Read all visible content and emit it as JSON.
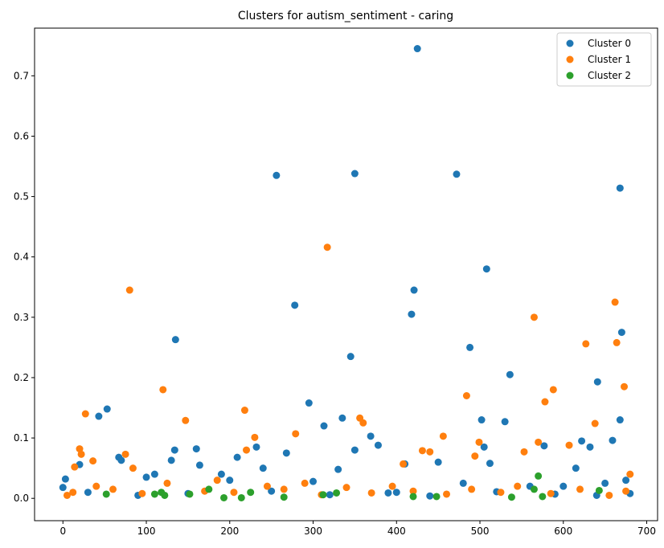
{
  "chart_data": {
    "type": "scatter",
    "title": "Clusters for autism_sentiment - caring",
    "xlim": [
      -34,
      713
    ],
    "ylim": [
      -0.037,
      0.779
    ],
    "xticks": [
      0,
      100,
      200,
      300,
      400,
      500,
      600,
      700
    ],
    "yticks": [
      {
        "value": 0,
        "label": "0.0"
      },
      0.1,
      0.2,
      0.3,
      0.4,
      0.5,
      0.6,
      0.7
    ],
    "legend": "upper right",
    "series": [
      {
        "name": "Cluster 0",
        "color": "#1f77b4",
        "x": [
          425,
          256,
          350,
          472,
          668,
          508,
          421,
          278,
          418,
          135,
          488,
          345,
          670,
          536,
          641,
          295,
          53,
          43,
          335,
          313,
          502,
          530,
          668,
          369,
          659,
          622,
          577,
          632,
          160,
          134,
          350,
          378,
          67,
          70,
          130,
          209,
          268,
          615,
          20,
          164,
          232,
          240,
          3,
          450,
          0,
          200,
          300,
          400,
          480,
          560,
          600,
          650,
          675,
          100,
          110,
          190,
          330,
          410,
          505,
          512,
          30,
          90,
          150,
          250,
          320,
          390,
          440,
          520,
          590,
          640,
          680
        ],
        "y": [
          0.745,
          0.535,
          0.538,
          0.537,
          0.514,
          0.38,
          0.345,
          0.32,
          0.305,
          0.263,
          0.25,
          0.235,
          0.275,
          0.205,
          0.193,
          0.158,
          0.148,
          0.136,
          0.133,
          0.12,
          0.13,
          0.127,
          0.13,
          0.103,
          0.096,
          0.095,
          0.087,
          0.085,
          0.082,
          0.08,
          0.08,
          0.088,
          0.068,
          0.063,
          0.063,
          0.068,
          0.075,
          0.05,
          0.056,
          0.055,
          0.085,
          0.05,
          0.032,
          0.06,
          0.018,
          0.03,
          0.028,
          0.01,
          0.025,
          0.02,
          0.02,
          0.025,
          0.03,
          0.035,
          0.04,
          0.04,
          0.048,
          0.057,
          0.085,
          0.058,
          0.01,
          0.005,
          0.008,
          0.012,
          0.006,
          0.009,
          0.004,
          0.011,
          0.007,
          0.005,
          0.008
        ]
      },
      {
        "name": "Cluster 1",
        "color": "#ff7f0e",
        "x": [
          80,
          317,
          565,
          662,
          664,
          627,
          673,
          120,
          588,
          484,
          578,
          218,
          27,
          147,
          356,
          360,
          638,
          230,
          279,
          456,
          499,
          570,
          607,
          20,
          75,
          22,
          14,
          36,
          84,
          220,
          431,
          440,
          553,
          408,
          494,
          680,
          5,
          12,
          40,
          60,
          95,
          125,
          170,
          185,
          205,
          245,
          265,
          290,
          310,
          340,
          370,
          395,
          420,
          460,
          490,
          525,
          545,
          585,
          620,
          655,
          675
        ],
        "y": [
          0.345,
          0.416,
          0.3,
          0.325,
          0.258,
          0.256,
          0.185,
          0.18,
          0.18,
          0.17,
          0.16,
          0.146,
          0.14,
          0.129,
          0.133,
          0.125,
          0.124,
          0.101,
          0.107,
          0.103,
          0.093,
          0.093,
          0.088,
          0.082,
          0.073,
          0.073,
          0.052,
          0.062,
          0.05,
          0.08,
          0.079,
          0.077,
          0.077,
          0.057,
          0.07,
          0.04,
          0.005,
          0.01,
          0.02,
          0.015,
          0.008,
          0.025,
          0.012,
          0.03,
          0.01,
          0.02,
          0.015,
          0.025,
          0.006,
          0.018,
          0.009,
          0.02,
          0.012,
          0.007,
          0.015,
          0.01,
          0.02,
          0.008,
          0.015,
          0.005,
          0.012
        ]
      },
      {
        "name": "Cluster 2",
        "color": "#2ca02c",
        "x": [
          52,
          110,
          118,
          122,
          152,
          175,
          193,
          214,
          225,
          265,
          312,
          328,
          420,
          448,
          538,
          565,
          570,
          575,
          643
        ],
        "y": [
          0.007,
          0.007,
          0.01,
          0.005,
          0.007,
          0.015,
          0.001,
          0.001,
          0.01,
          0.002,
          0.006,
          0.009,
          0.003,
          0.003,
          0.002,
          0.015,
          0.037,
          0.003,
          0.013
        ]
      }
    ]
  }
}
